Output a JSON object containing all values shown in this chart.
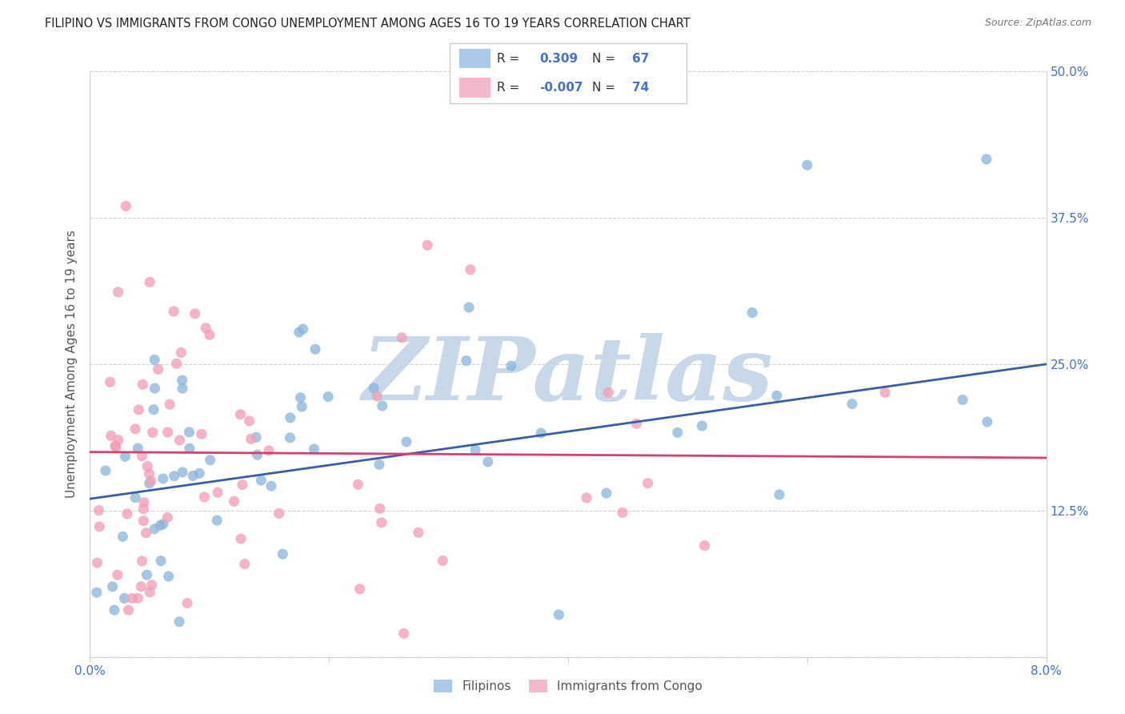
{
  "title": "FILIPINO VS IMMIGRANTS FROM CONGO UNEMPLOYMENT AMONG AGES 16 TO 19 YEARS CORRELATION CHART",
  "source": "Source: ZipAtlas.com",
  "ylabel": "Unemployment Among Ages 16 to 19 years",
  "xlim": [
    0.0,
    8.0
  ],
  "ylim": [
    0.0,
    50.0
  ],
  "yticks": [
    0,
    12.5,
    25.0,
    37.5,
    50.0
  ],
  "xticks": [
    0,
    2,
    4,
    6,
    8
  ],
  "xtick_labels": [
    "0.0%",
    "",
    "",
    "",
    "8.0%"
  ],
  "right_ytick_labels": [
    "",
    "12.5%",
    "25.0%",
    "37.5%",
    "50.0%"
  ],
  "blue_scatter_color": "#8ab4d8",
  "pink_scatter_color": "#f2a0b8",
  "blue_line_color": "#3a5fa0",
  "pink_line_color": "#d44070",
  "watermark": "ZIPatlas",
  "watermark_color": "#c8d8e8",
  "background_color": "#ffffff",
  "grid_color": "#cccccc",
  "tick_color": "#4472c4",
  "title_color": "#222222",
  "ylabel_color": "#555555",
  "source_color": "#777777",
  "legend_r1": "0.309",
  "legend_n1": "67",
  "legend_r2": "-0.007",
  "legend_n2": "74",
  "blue_legend_color": "#aac8e8",
  "pink_legend_color": "#f4b8cc",
  "fil_line_y0": 13.5,
  "fil_line_y8": 25.0,
  "congo_line_y0": 17.5,
  "congo_line_y8": 17.0
}
